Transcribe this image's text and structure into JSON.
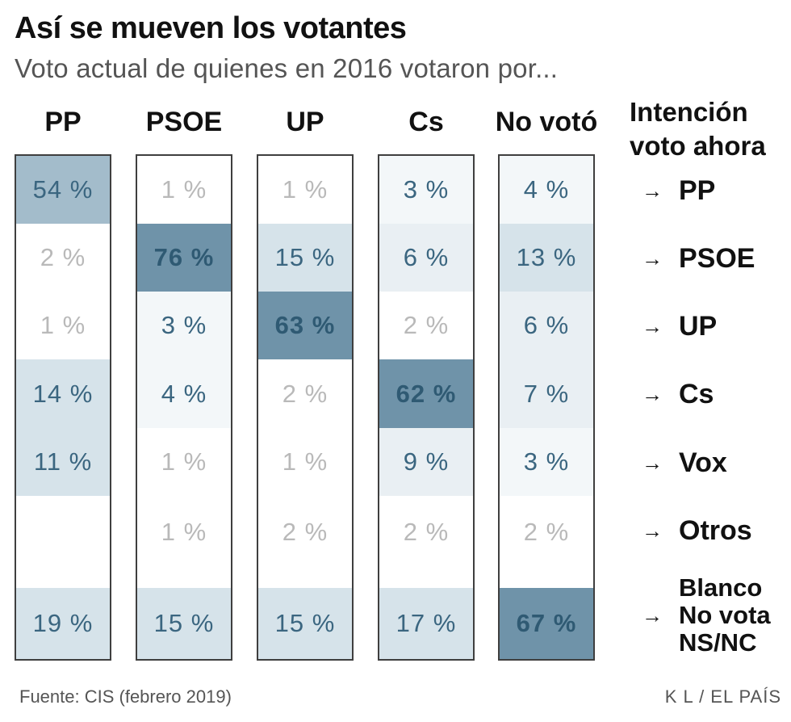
{
  "title": "Así se mueven los votantes",
  "subtitle": "Voto actual de quienes en 2016 votaron por...",
  "legend_title_line1": "Intención",
  "legend_title_line2": "voto ahora",
  "arrow": "→",
  "source": "Fuente: CIS (febrero 2019)",
  "credit": "K L / EL PAÍS",
  "colors": {
    "text_strong": "#2f5a73",
    "text_mid": "#3b6680",
    "text_faint": "#b9b9b9",
    "fill_max": "#6f93a9",
    "fill_high": "#a3bccb",
    "fill_mid": "#d6e3ea",
    "fill_low": "#e9eff3",
    "fill_min": "#f3f7f9",
    "fill_none": "#ffffff",
    "border": "#3f3f3f"
  },
  "chart_data": {
    "type": "table",
    "title": "Así se mueven los votantes",
    "subtitle": "Voto actual de quienes en 2016 votaron por...",
    "columns": [
      "PP",
      "PSOE",
      "UP",
      "Cs",
      "No votó"
    ],
    "rows": [
      {
        "label": "PP",
        "lines": [
          "PP"
        ]
      },
      {
        "label": "PSOE",
        "lines": [
          "PSOE"
        ]
      },
      {
        "label": "UP",
        "lines": [
          "UP"
        ]
      },
      {
        "label": "Cs",
        "lines": [
          "Cs"
        ]
      },
      {
        "label": "Vox",
        "lines": [
          "Vox"
        ]
      },
      {
        "label": "Otros",
        "lines": [
          "Otros"
        ]
      },
      {
        "label": "Blanco / No vota / NS/NC",
        "lines": [
          "Blanco",
          "No vota",
          "NS/NC"
        ]
      }
    ],
    "unit": "%",
    "values": [
      [
        54,
        1,
        1,
        3,
        4
      ],
      [
        2,
        76,
        15,
        6,
        13
      ],
      [
        1,
        3,
        63,
        2,
        6
      ],
      [
        14,
        4,
        2,
        62,
        7
      ],
      [
        11,
        1,
        1,
        9,
        3
      ],
      [
        null,
        1,
        2,
        2,
        2
      ],
      [
        19,
        15,
        15,
        17,
        67
      ]
    ],
    "value_suffix": " %",
    "source": "Fuente: CIS (febrero 2019)"
  }
}
